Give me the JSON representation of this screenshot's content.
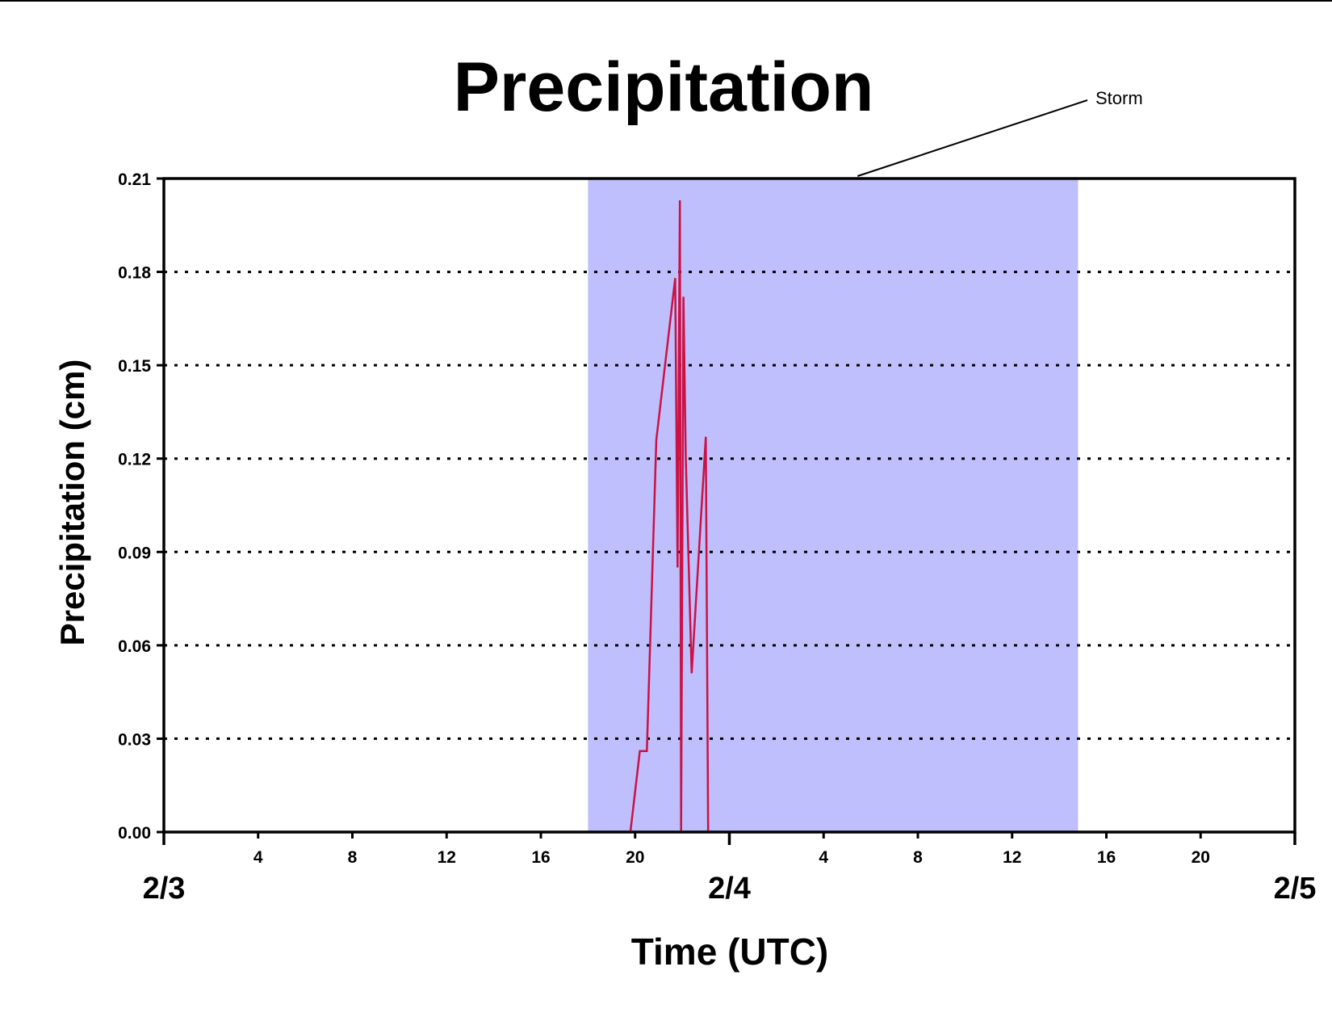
{
  "chart_data": {
    "type": "line",
    "title": "Precipitation",
    "xlabel": "Time (UTC)",
    "ylabel": "Precipitation (cm)",
    "ylim": [
      0,
      0.21
    ],
    "xlim_hours": [
      0,
      48
    ],
    "yticks": [
      "0.00",
      "0.03",
      "0.06",
      "0.09",
      "0.12",
      "0.15",
      "0.18",
      "0.21"
    ],
    "grid": "horizontal-dotted",
    "xticks_minor": [
      {
        "hour": 4,
        "label": "4"
      },
      {
        "hour": 8,
        "label": "8"
      },
      {
        "hour": 12,
        "label": "12"
      },
      {
        "hour": 16,
        "label": "16"
      },
      {
        "hour": 20,
        "label": "20"
      },
      {
        "hour": 28,
        "label": "4"
      },
      {
        "hour": 32,
        "label": "8"
      },
      {
        "hour": 36,
        "label": "12"
      },
      {
        "hour": 40,
        "label": "16"
      },
      {
        "hour": 44,
        "label": "20"
      }
    ],
    "xticks_major": [
      {
        "hour": 0,
        "label": "2/3"
      },
      {
        "hour": 24,
        "label": "2/4"
      },
      {
        "hour": 48,
        "label": "2/5"
      }
    ],
    "shaded_region": {
      "x_start": 18,
      "x_end": 38.8,
      "color": "#bfbffd",
      "label": "Storm"
    },
    "series": [
      {
        "color": "#cc1144",
        "x": [
          0,
          19.8,
          20.2,
          20.5,
          20.9,
          21.7,
          21.8,
          21.9,
          21.95,
          22.05,
          22.15,
          22.4,
          23.0,
          23.1,
          48
        ],
        "y": [
          0,
          0,
          0.026,
          0.026,
          0.126,
          0.178,
          0.085,
          0.203,
          0.0,
          0.172,
          0.12,
          0.051,
          0.127,
          0.0,
          0
        ]
      }
    ]
  }
}
